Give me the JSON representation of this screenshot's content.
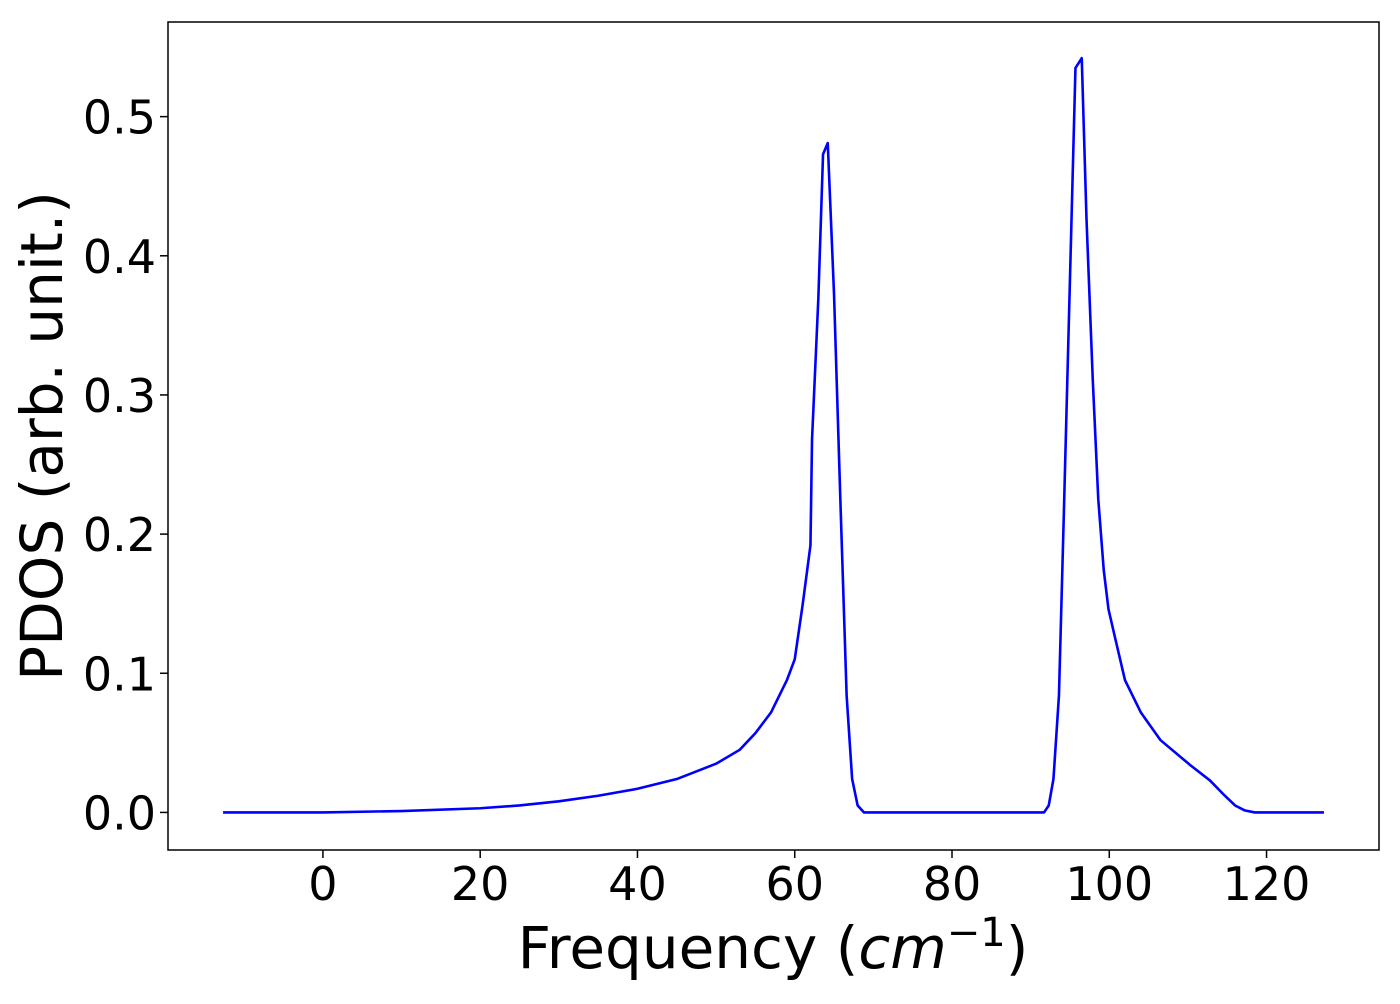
{
  "chart_data": {
    "type": "line",
    "xlabel": [
      "Frequency (",
      "cm",
      "−1",
      ")"
    ],
    "ylabel": "PDOS (arb. unit.)",
    "xlim": [
      -19.7,
      134.3
    ],
    "ylim": [
      -0.027,
      0.568
    ],
    "xticks": [
      0,
      20,
      40,
      60,
      80,
      100,
      120
    ],
    "yticks": [
      {
        "value": 0,
        "label": "0.0"
      },
      0.1,
      0.2,
      0.3,
      0.4,
      0.5
    ],
    "grid": false,
    "series": [
      {
        "color": "#0000ff",
        "x": [
          -12.7,
          0,
          10,
          20,
          25,
          30,
          35,
          40,
          45,
          50,
          53,
          55,
          57,
          59,
          60,
          61,
          62,
          62.2,
          63,
          63.6,
          64.2,
          65,
          65.8,
          66.6,
          67.3,
          68,
          68.8,
          80,
          91.7,
          92.3,
          92.9,
          93.6,
          94.2,
          95.1,
          95.7,
          96.5,
          97.1,
          97.9,
          98.6,
          99.3,
          99.9,
          100.8,
          102,
          104,
          106.5,
          110.3,
          112.8,
          114.7,
          116,
          117.2,
          118.5,
          127.3
        ],
        "values": [
          0,
          0,
          0.001,
          0.003,
          0.005,
          0.008,
          0.012,
          0.017,
          0.024,
          0.035,
          0.045,
          0.057,
          0.072,
          0.095,
          0.11,
          0.149,
          0.192,
          0.268,
          0.369,
          0.473,
          0.481,
          0.372,
          0.225,
          0.084,
          0.024,
          0.005,
          0,
          0,
          0,
          0.005,
          0.024,
          0.084,
          0.21,
          0.405,
          0.535,
          0.542,
          0.427,
          0.311,
          0.225,
          0.174,
          0.146,
          0.124,
          0.095,
          0.072,
          0.052,
          0.034,
          0.023,
          0.012,
          0.005,
          0.0015,
          0,
          0
        ]
      }
    ]
  }
}
